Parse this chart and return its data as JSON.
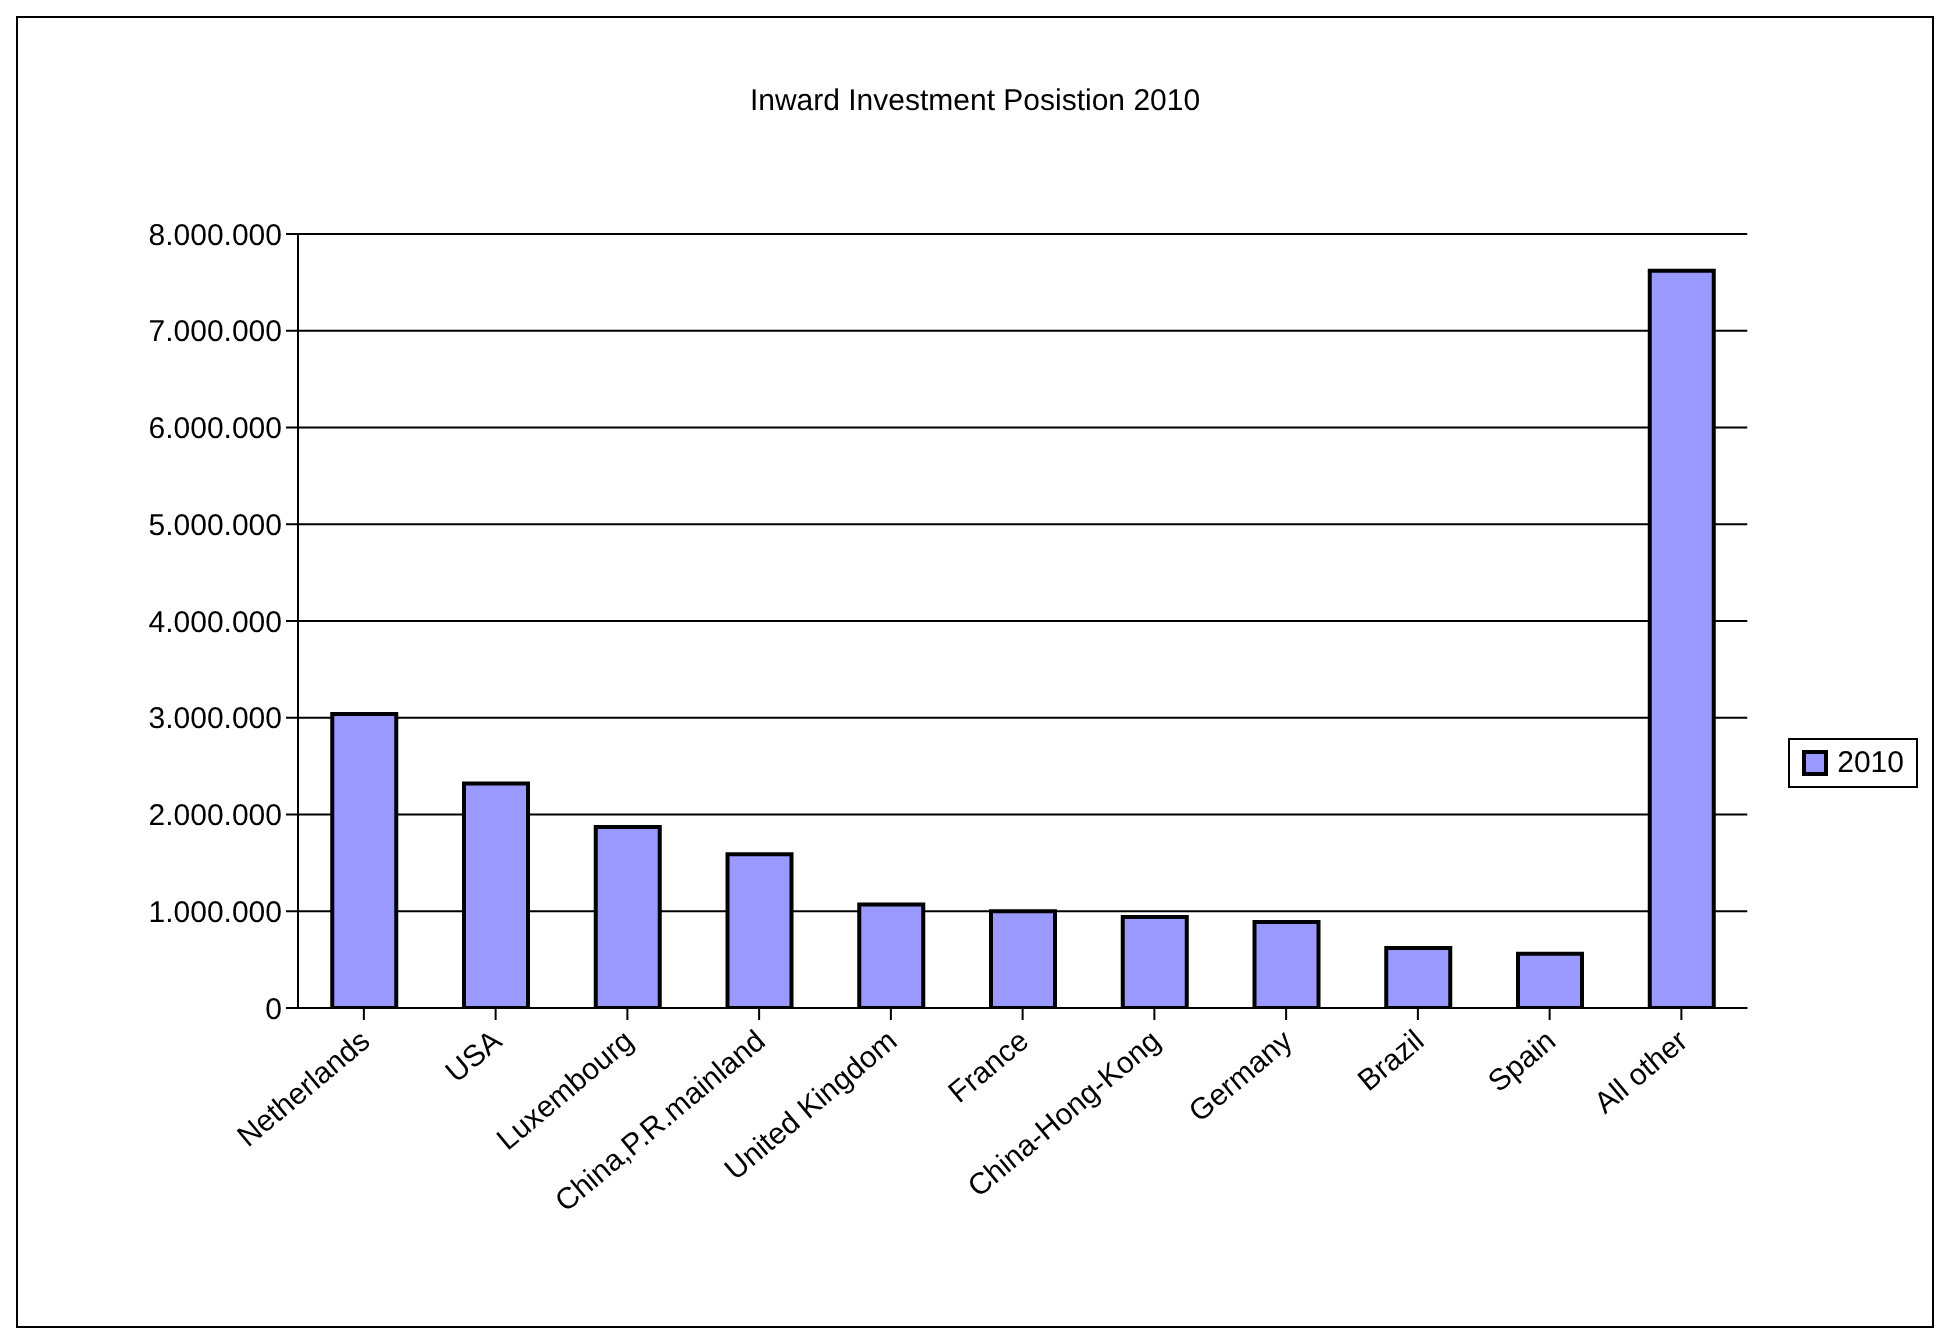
{
  "chart_data": {
    "type": "bar",
    "title": "Inward Investment Posistion 2010",
    "categories": [
      "Netherlands",
      "USA",
      "Luxembourg",
      "China,P.R.mainland",
      "United Kingdom",
      "France",
      "China-Hong-Kong",
      "Germany",
      "Brazil",
      "Spain",
      "All other"
    ],
    "series": [
      {
        "name": "2010",
        "color": "#9999ff",
        "values": [
          3040000,
          2320000,
          1870000,
          1590000,
          1070000,
          1000000,
          940000,
          890000,
          620000,
          560000,
          7620000
        ]
      }
    ],
    "ylim": [
      0,
      8000000
    ],
    "yticks": [
      {
        "value": 0,
        "label": "0"
      },
      {
        "value": 1000000,
        "label": "1.000.000"
      },
      {
        "value": 2000000,
        "label": "2.000.000"
      },
      {
        "value": 3000000,
        "label": "3.000.000"
      },
      {
        "value": 4000000,
        "label": "4.000.000"
      },
      {
        "value": 5000000,
        "label": "5.000.000"
      },
      {
        "value": 6000000,
        "label": "6.000.000"
      },
      {
        "value": 7000000,
        "label": "7.000.000"
      },
      {
        "value": 8000000,
        "label": "8.000.000"
      }
    ],
    "grid": "y",
    "legend": "right"
  }
}
